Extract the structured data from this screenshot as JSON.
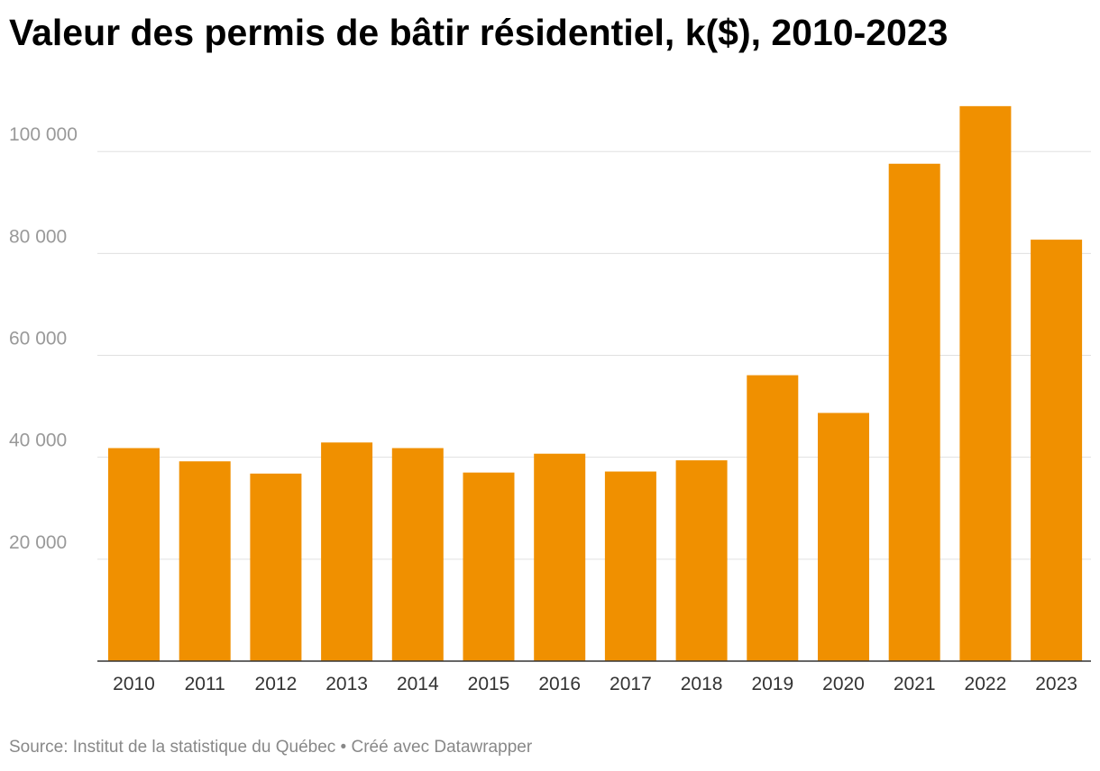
{
  "title": "Valeur des permis de bâtir résidentiel, k($), 2010-2023",
  "footer": {
    "source": "Source: Institut de la statistique du Québec",
    "separator": " • ",
    "credit": "Créé avec Datawrapper"
  },
  "colors": {
    "bar": "#f09000",
    "grid": "#e0e0e0",
    "axis": "#333333",
    "ytick": "#999999",
    "xtick": "#333333"
  },
  "chart_data": {
    "type": "bar",
    "title": "Valeur des permis de bâtir résidentiel, k($), 2010-2023",
    "xlabel": "",
    "ylabel": "",
    "categories": [
      "2010",
      "2011",
      "2012",
      "2013",
      "2014",
      "2015",
      "2016",
      "2017",
      "2018",
      "2019",
      "2020",
      "2021",
      "2022",
      "2023"
    ],
    "values": [
      41800,
      39200,
      36800,
      42900,
      41800,
      37000,
      40700,
      37200,
      39400,
      56100,
      48700,
      97600,
      108900,
      82700
    ],
    "ylim": [
      0,
      112000
    ],
    "yticks": [
      20000,
      40000,
      60000,
      80000,
      100000
    ],
    "ytick_labels": [
      "20 000",
      "40 000",
      "60 000",
      "80 000",
      "100 000"
    ],
    "grid": true,
    "legend": "none"
  }
}
